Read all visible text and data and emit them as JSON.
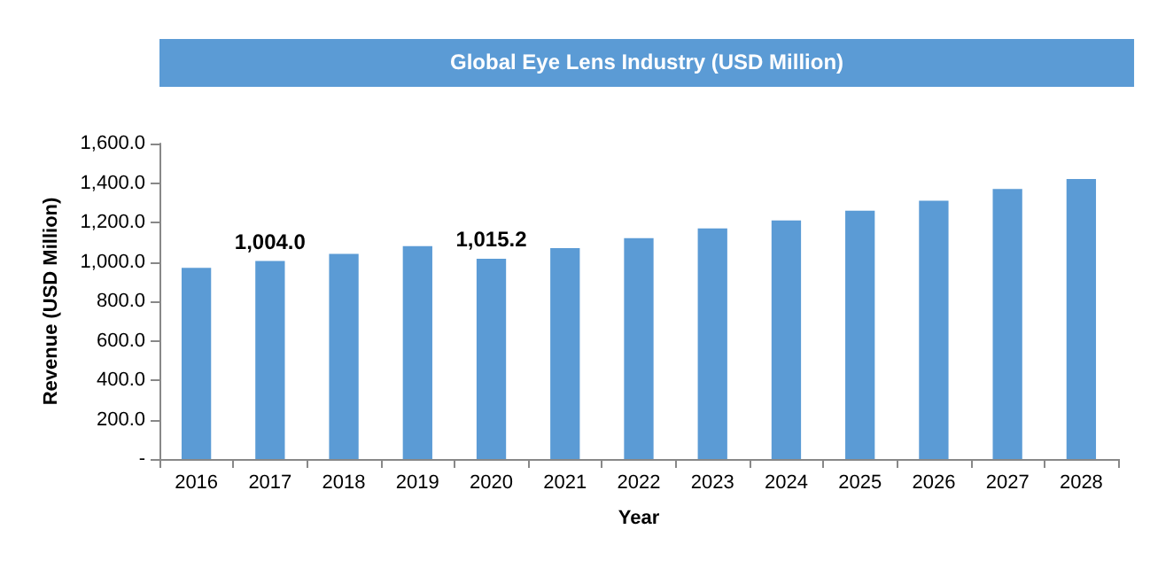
{
  "chart_data": {
    "type": "bar",
    "title": "Global Eye Lens Industry (USD Million)",
    "xlabel": "Year",
    "ylabel": "Revenue (USD Million)",
    "categories": [
      "2016",
      "2017",
      "2018",
      "2019",
      "2020",
      "2021",
      "2022",
      "2023",
      "2024",
      "2025",
      "2026",
      "2027",
      "2028"
    ],
    "values": [
      970,
      1004.0,
      1040,
      1080,
      1015.2,
      1070,
      1120,
      1170,
      1210,
      1260,
      1310,
      1370,
      1420
    ],
    "value_labels": [
      null,
      "1,004.0",
      null,
      null,
      "1,015.2",
      null,
      null,
      null,
      null,
      null,
      null,
      null,
      null
    ],
    "color": "#5b9bd5",
    "ylim": [
      0,
      1600
    ],
    "yticks": [
      {
        "value": 0,
        "label": "-"
      },
      {
        "value": 200,
        "label": "200.0"
      },
      {
        "value": 400,
        "label": "400.0"
      },
      {
        "value": 600,
        "label": "600.0"
      },
      {
        "value": 800,
        "label": "800.0"
      },
      {
        "value": 1000,
        "label": "1,000.0"
      },
      {
        "value": 1200,
        "label": "1,200.0"
      },
      {
        "value": 1400,
        "label": "1,400.0"
      },
      {
        "value": 1600,
        "label": "1,600.0"
      }
    ],
    "grid": false
  }
}
